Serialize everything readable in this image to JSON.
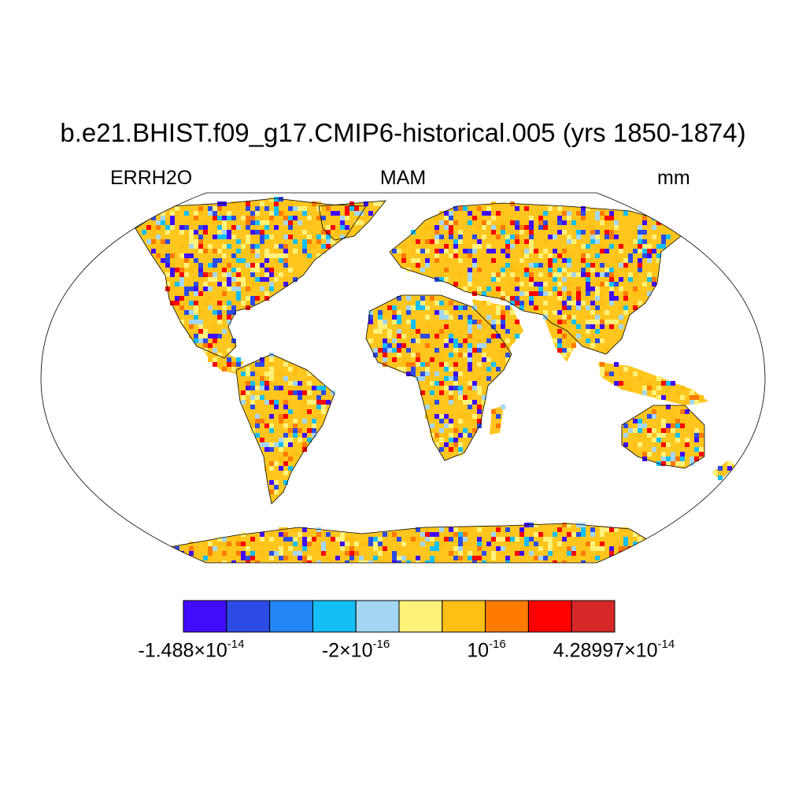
{
  "title": "b.e21.BHIST.f09_g17.CMIP6-historical.005 (yrs 1850-1874)",
  "subtitle_left": "ERRH2O",
  "subtitle_center": "MAM",
  "subtitle_right": "mm",
  "colorbar": {
    "colors": [
      "#3f0dfb",
      "#2d4ce6",
      "#2287f5",
      "#14bff7",
      "#a4d6f4",
      "#fff27a",
      "#ffbf14",
      "#ff7a00",
      "#ff0000",
      "#d62828"
    ],
    "labels": [
      {
        "mantissa": "-1.488×10",
        "exp": "-14"
      },
      {
        "mantissa": "-2×10",
        "exp": "-16"
      },
      {
        "mantissa": "10",
        "exp": "-16"
      },
      {
        "mantissa": "4.28997×10",
        "exp": "-14"
      }
    ]
  },
  "map": {
    "projection": "robinson",
    "ocean_color": "#ffffff",
    "coastline_color": "#000000"
  }
}
